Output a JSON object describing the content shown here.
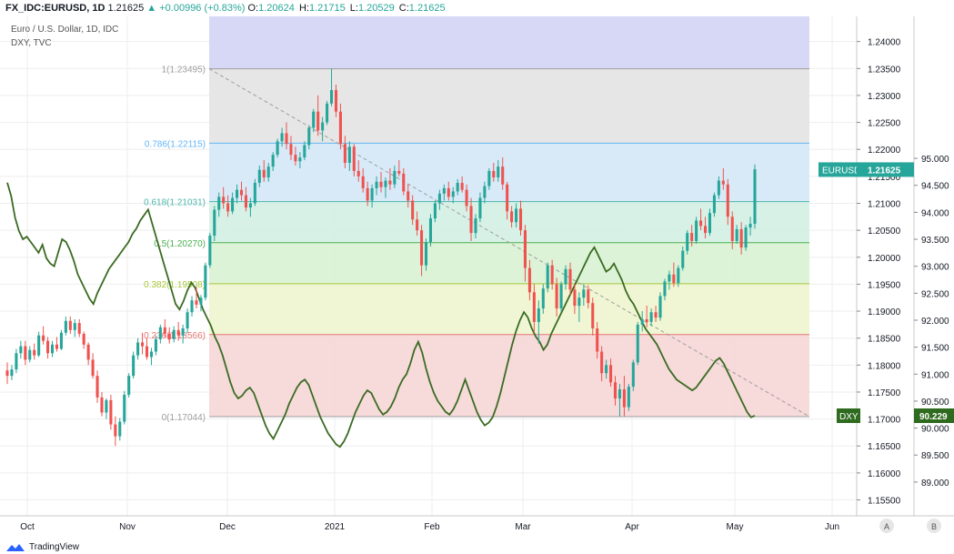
{
  "header": {
    "symbol": "FX_IDC:EURUSD, 1D",
    "last": "1.21625",
    "change": "▲ +0.00996 (+0.83%)",
    "o_label": "O:",
    "o": "1.20624",
    "h_label": "H:",
    "h": "1.21715",
    "l_label": "L:",
    "l": "1.20529",
    "c_label": "C:",
    "c": "1.21625"
  },
  "legend": {
    "main": "Euro / U.S. Dollar, 1D, IDC",
    "overlay": "DXY, TVC"
  },
  "footer": {
    "brand": "TradingView"
  },
  "chart_data": {
    "type": "candlestick",
    "x_ticks": [
      "Oct",
      "Nov",
      "Dec",
      "2021",
      "Feb",
      "Mar",
      "Apr",
      "May",
      "Jun"
    ],
    "left_axis_ticks": [
      1.155,
      1.16,
      1.165,
      1.17,
      1.175,
      1.18,
      1.185,
      1.19,
      1.195,
      1.2,
      1.205,
      1.21,
      1.215,
      1.22,
      1.225,
      1.23,
      1.235,
      1.24
    ],
    "left_axis_labels": [
      "1.15500",
      "1.16000",
      "1.16500",
      "1.17000",
      "1.17500",
      "1.18000",
      "1.18500",
      "1.19000",
      "1.19500",
      "1.20000",
      "1.20500",
      "1.21000",
      "1.21500",
      "1.22000",
      "1.22500",
      "1.23000",
      "1.23500",
      "1.24000"
    ],
    "right_axis_ticks": [
      89.0,
      89.5,
      90.0,
      90.5,
      91.0,
      91.5,
      92.0,
      92.5,
      93.0,
      93.5,
      94.0,
      94.5,
      95.0
    ],
    "right_axis_labels": [
      "89.000",
      "89.500",
      "90.000",
      "90.500",
      "91.000",
      "91.500",
      "92.000",
      "92.500",
      "93.000",
      "93.500",
      "94.000",
      "94.500",
      "95.000"
    ],
    "axis_scale_buttons": [
      "A",
      "B"
    ],
    "fib_levels": [
      {
        "ratio": 1,
        "label": "1(1.23495)",
        "price": 1.23495,
        "fill": "#e3e3e3",
        "line": "#9e9e9e"
      },
      {
        "ratio": 0.786,
        "label": "0.786(1.22115)",
        "price": 1.22115,
        "fill": "#d4e8f6",
        "line": "#64b5f6"
      },
      {
        "ratio": 0.618,
        "label": "0.618(1.21031)",
        "price": 1.21031,
        "fill": "#d3f0e4",
        "line": "#4db6ac"
      },
      {
        "ratio": 0.5,
        "label": "0.5(1.20270)",
        "price": 1.2027,
        "fill": "#d8f2d3",
        "line": "#4caf50"
      },
      {
        "ratio": 0.382,
        "label": "0.382(1.19508)",
        "price": 1.19508,
        "fill": "#eef5cf",
        "line": "#a6c63a"
      },
      {
        "ratio": 0.236,
        "label": "0.236(1.18566)",
        "price": 1.18566,
        "fill": "#f6d6d6",
        "line": "#e57373"
      },
      {
        "ratio": 0,
        "label": "0(1.17044)",
        "price": 1.17044,
        "fill": "",
        "line": "#9e9e9e"
      }
    ],
    "fib_extension_fill": "#d1d4f5",
    "candles": [
      [
        1.179,
        1.1805,
        1.1765,
        1.178
      ],
      [
        1.178,
        1.18,
        1.1772,
        1.1792
      ],
      [
        1.1792,
        1.183,
        1.1785,
        1.1822
      ],
      [
        1.1822,
        1.1845,
        1.1812,
        1.1835
      ],
      [
        1.1835,
        1.1845,
        1.18,
        1.181
      ],
      [
        1.181,
        1.1835,
        1.1805,
        1.1828
      ],
      [
        1.1828,
        1.184,
        1.181,
        1.1818
      ],
      [
        1.1818,
        1.1862,
        1.1815,
        1.1855
      ],
      [
        1.1855,
        1.1872,
        1.1838,
        1.1845
      ],
      [
        1.1845,
        1.1852,
        1.1812,
        1.1822
      ],
      [
        1.1822,
        1.1845,
        1.1815,
        1.1838
      ],
      [
        1.1838,
        1.1852,
        1.1825,
        1.183
      ],
      [
        1.183,
        1.1865,
        1.1828,
        1.186
      ],
      [
        1.186,
        1.189,
        1.1855,
        1.1882
      ],
      [
        1.1882,
        1.189,
        1.1858,
        1.1865
      ],
      [
        1.1865,
        1.1885,
        1.1852,
        1.1878
      ],
      [
        1.1878,
        1.1885,
        1.1852,
        1.1858
      ],
      [
        1.1858,
        1.1862,
        1.183,
        1.1838
      ],
      [
        1.1838,
        1.1842,
        1.18,
        1.181
      ],
      [
        1.181,
        1.1822,
        1.1775,
        1.178
      ],
      [
        1.178,
        1.179,
        1.173,
        1.174
      ],
      [
        1.174,
        1.175,
        1.1705,
        1.1712
      ],
      [
        1.1712,
        1.1738,
        1.17,
        1.1735
      ],
      [
        1.1735,
        1.1745,
        1.168,
        1.169
      ],
      [
        1.169,
        1.1705,
        1.165,
        1.1668
      ],
      [
        1.1668,
        1.1702,
        1.166,
        1.1695
      ],
      [
        1.1695,
        1.1752,
        1.169,
        1.1745
      ],
      [
        1.1745,
        1.1785,
        1.174,
        1.178
      ],
      [
        1.178,
        1.1825,
        1.1775,
        1.1818
      ],
      [
        1.1818,
        1.185,
        1.181,
        1.1842
      ],
      [
        1.1842,
        1.186,
        1.182,
        1.1835
      ],
      [
        1.1835,
        1.185,
        1.181,
        1.1815
      ],
      [
        1.1815,
        1.1832,
        1.18,
        1.1825
      ],
      [
        1.1825,
        1.1855,
        1.1818,
        1.1848
      ],
      [
        1.1848,
        1.1875,
        1.184,
        1.187
      ],
      [
        1.187,
        1.1885,
        1.1852,
        1.1858
      ],
      [
        1.1858,
        1.187,
        1.184,
        1.1848
      ],
      [
        1.1848,
        1.1872,
        1.1842,
        1.1865
      ],
      [
        1.1865,
        1.188,
        1.1845,
        1.1855
      ],
      [
        1.1855,
        1.1875,
        1.184,
        1.1868
      ],
      [
        1.1868,
        1.1905,
        1.186,
        1.1898
      ],
      [
        1.1898,
        1.1928,
        1.189,
        1.192
      ],
      [
        1.192,
        1.1945,
        1.1905,
        1.1912
      ],
      [
        1.1912,
        1.193,
        1.19,
        1.1925
      ],
      [
        1.1925,
        1.199,
        1.192,
        1.1985
      ],
      [
        1.1985,
        1.2045,
        1.198,
        1.204
      ],
      [
        1.204,
        1.2095,
        1.203,
        1.2088
      ],
      [
        1.2088,
        1.212,
        1.2075,
        1.2112
      ],
      [
        1.2112,
        1.213,
        1.209,
        1.21
      ],
      [
        1.21,
        1.2115,
        1.2075,
        1.2085
      ],
      [
        1.2085,
        1.212,
        1.208,
        1.211
      ],
      [
        1.211,
        1.2135,
        1.21,
        1.2125
      ],
      [
        1.2125,
        1.214,
        1.2105,
        1.2115
      ],
      [
        1.2115,
        1.213,
        1.2085,
        1.2092
      ],
      [
        1.2092,
        1.211,
        1.2075,
        1.21
      ],
      [
        1.21,
        1.2145,
        1.2095,
        1.2138
      ],
      [
        1.2138,
        1.217,
        1.213,
        1.2162
      ],
      [
        1.2162,
        1.218,
        1.214,
        1.2148
      ],
      [
        1.2148,
        1.2175,
        1.214,
        1.2168
      ],
      [
        1.2168,
        1.2195,
        1.216,
        1.219
      ],
      [
        1.219,
        1.222,
        1.2185,
        1.2215
      ],
      [
        1.2215,
        1.224,
        1.2205,
        1.223
      ],
      [
        1.223,
        1.225,
        1.22,
        1.221
      ],
      [
        1.221,
        1.2225,
        1.218,
        1.219
      ],
      [
        1.219,
        1.2205,
        1.217,
        1.2178
      ],
      [
        1.2178,
        1.2195,
        1.2165,
        1.2185
      ],
      [
        1.2185,
        1.2215,
        1.218,
        1.2208
      ],
      [
        1.2208,
        1.2245,
        1.22,
        1.224
      ],
      [
        1.224,
        1.2275,
        1.2232,
        1.227
      ],
      [
        1.227,
        1.23,
        1.2225,
        1.2235
      ],
      [
        1.2235,
        1.226,
        1.2215,
        1.225
      ],
      [
        1.225,
        1.229,
        1.2245,
        1.2285
      ],
      [
        1.2285,
        1.235,
        1.228,
        1.231
      ],
      [
        1.231,
        1.232,
        1.226,
        1.227
      ],
      [
        1.227,
        1.2285,
        1.22,
        1.221
      ],
      [
        1.221,
        1.2225,
        1.2165,
        1.2175
      ],
      [
        1.2175,
        1.2215,
        1.216,
        1.2205
      ],
      [
        1.2205,
        1.221,
        1.215,
        1.216
      ],
      [
        1.216,
        1.218,
        1.214,
        1.215
      ],
      [
        1.215,
        1.2165,
        1.212,
        1.2128
      ],
      [
        1.2128,
        1.214,
        1.2095,
        1.2105
      ],
      [
        1.2105,
        1.2135,
        1.2092,
        1.2128
      ],
      [
        1.2128,
        1.215,
        1.2115,
        1.214
      ],
      [
        1.214,
        1.2158,
        1.212,
        1.213
      ],
      [
        1.213,
        1.2148,
        1.211,
        1.2142
      ],
      [
        1.2142,
        1.2165,
        1.2125,
        1.2135
      ],
      [
        1.2135,
        1.217,
        1.2128,
        1.216
      ],
      [
        1.216,
        1.218,
        1.215,
        1.2155
      ],
      [
        1.2155,
        1.2165,
        1.2115,
        1.2122
      ],
      [
        1.2122,
        1.2135,
        1.2092,
        1.2105
      ],
      [
        1.2105,
        1.2115,
        1.206,
        1.207
      ],
      [
        1.207,
        1.2085,
        1.204,
        1.205
      ],
      [
        1.205,
        1.206,
        1.1965,
        1.1985
      ],
      [
        1.1985,
        1.2035,
        1.1975,
        1.2028
      ],
      [
        1.2028,
        1.208,
        1.202,
        1.2072
      ],
      [
        1.2072,
        1.2105,
        1.2065,
        1.21
      ],
      [
        1.21,
        1.2125,
        1.2088,
        1.2118
      ],
      [
        1.2118,
        1.2135,
        1.2105,
        1.2128
      ],
      [
        1.2128,
        1.214,
        1.2105,
        1.2112
      ],
      [
        1.2112,
        1.213,
        1.21,
        1.2122
      ],
      [
        1.2122,
        1.2145,
        1.2115,
        1.2138
      ],
      [
        1.2138,
        1.215,
        1.212,
        1.2125
      ],
      [
        1.2125,
        1.2135,
        1.2085,
        1.2095
      ],
      [
        1.2095,
        1.211,
        1.203,
        1.2045
      ],
      [
        1.2045,
        1.208,
        1.2035,
        1.2072
      ],
      [
        1.2072,
        1.212,
        1.2065,
        1.211
      ],
      [
        1.211,
        1.214,
        1.21,
        1.2132
      ],
      [
        1.2132,
        1.2165,
        1.2125,
        1.216
      ],
      [
        1.216,
        1.2175,
        1.214,
        1.2148
      ],
      [
        1.2148,
        1.218,
        1.214,
        1.2168
      ],
      [
        1.2168,
        1.2185,
        1.2125,
        1.2135
      ],
      [
        1.2135,
        1.214,
        1.207,
        1.2085
      ],
      [
        1.2085,
        1.2095,
        1.2055,
        1.2065
      ],
      [
        1.2065,
        1.21,
        1.2055,
        1.209
      ],
      [
        1.209,
        1.2105,
        1.204,
        1.205
      ],
      [
        1.205,
        1.206,
        1.1955,
        1.198
      ],
      [
        1.198,
        1.1995,
        1.192,
        1.1935
      ],
      [
        1.1935,
        1.195,
        1.186,
        1.188
      ],
      [
        1.188,
        1.192,
        1.184,
        1.1905
      ],
      [
        1.1905,
        1.195,
        1.1895,
        1.1942
      ],
      [
        1.1942,
        1.199,
        1.1935,
        1.1985
      ],
      [
        1.1985,
        1.1995,
        1.194,
        1.195
      ],
      [
        1.195,
        1.1962,
        1.189,
        1.1905
      ],
      [
        1.1905,
        1.1955,
        1.1898,
        1.195
      ],
      [
        1.195,
        1.1985,
        1.194,
        1.1978
      ],
      [
        1.1978,
        1.199,
        1.193,
        1.194
      ],
      [
        1.194,
        1.195,
        1.1895,
        1.191
      ],
      [
        1.191,
        1.1935,
        1.188,
        1.1925
      ],
      [
        1.1925,
        1.195,
        1.191,
        1.194
      ],
      [
        1.194,
        1.1948,
        1.1905,
        1.1915
      ],
      [
        1.1915,
        1.1925,
        1.1855,
        1.1868
      ],
      [
        1.1868,
        1.188,
        1.1812,
        1.1825
      ],
      [
        1.1825,
        1.1835,
        1.177,
        1.1785
      ],
      [
        1.1785,
        1.181,
        1.1775,
        1.18
      ],
      [
        1.18,
        1.1812,
        1.176,
        1.1768
      ],
      [
        1.1768,
        1.178,
        1.1725,
        1.1738
      ],
      [
        1.1738,
        1.1765,
        1.1705,
        1.1755
      ],
      [
        1.1755,
        1.178,
        1.1705,
        1.1722
      ],
      [
        1.1722,
        1.1765,
        1.1715,
        1.176
      ],
      [
        1.176,
        1.181,
        1.1752,
        1.1805
      ],
      [
        1.1805,
        1.188,
        1.18,
        1.1875
      ],
      [
        1.1875,
        1.19,
        1.1862,
        1.1885
      ],
      [
        1.1885,
        1.191,
        1.187,
        1.188
      ],
      [
        1.188,
        1.1905,
        1.1872,
        1.1898
      ],
      [
        1.1898,
        1.191,
        1.188,
        1.1888
      ],
      [
        1.1888,
        1.1935,
        1.1882,
        1.1928
      ],
      [
        1.1928,
        1.196,
        1.192,
        1.1955
      ],
      [
        1.1955,
        1.1975,
        1.194,
        1.1968
      ],
      [
        1.1968,
        1.199,
        1.1945,
        1.1952
      ],
      [
        1.1952,
        1.1985,
        1.1945,
        1.198
      ],
      [
        1.198,
        1.202,
        1.1975,
        1.2012
      ],
      [
        1.2012,
        1.205,
        1.2005,
        1.2045
      ],
      [
        1.2045,
        1.206,
        1.202,
        1.203
      ],
      [
        1.203,
        1.2075,
        1.2025,
        1.2068
      ],
      [
        1.2068,
        1.209,
        1.205,
        1.2058
      ],
      [
        1.2058,
        1.2075,
        1.2035,
        1.2045
      ],
      [
        1.2045,
        1.209,
        1.204,
        1.2082
      ],
      [
        1.2082,
        1.212,
        1.2075,
        1.2115
      ],
      [
        1.2115,
        1.215,
        1.2108,
        1.2142
      ],
      [
        1.2142,
        1.2165,
        1.2125,
        1.2135
      ],
      [
        1.2135,
        1.2145,
        1.206,
        1.2075
      ],
      [
        1.2075,
        1.2085,
        1.2015,
        1.203
      ],
      [
        1.203,
        1.206,
        1.2025,
        1.2052
      ],
      [
        1.2052,
        1.2065,
        1.2005,
        1.2018
      ],
      [
        1.2018,
        1.206,
        1.2012,
        1.2055
      ],
      [
        1.2055,
        1.2075,
        1.204,
        1.2062
      ],
      [
        1.2062,
        1.2172,
        1.2053,
        1.2163
      ]
    ],
    "dxy_line": [
      94.55,
      94.3,
      93.9,
      93.65,
      93.5,
      93.55,
      93.45,
      93.35,
      93.25,
      93.4,
      93.15,
      93.05,
      93.0,
      93.25,
      93.5,
      93.45,
      93.3,
      93.1,
      92.85,
      92.7,
      92.55,
      92.4,
      92.3,
      92.5,
      92.65,
      92.8,
      92.95,
      93.05,
      93.15,
      93.25,
      93.35,
      93.45,
      93.6,
      93.7,
      93.85,
      93.95,
      94.05,
      93.8,
      93.55,
      93.3,
      93.05,
      92.8,
      92.55,
      92.3,
      92.2,
      92.35,
      92.55,
      92.7,
      92.6,
      92.4,
      92.2,
      92.05,
      91.9,
      91.7,
      91.55,
      91.35,
      91.1,
      90.85,
      90.65,
      90.55,
      90.6,
      90.7,
      90.75,
      90.65,
      90.45,
      90.25,
      90.05,
      89.9,
      89.8,
      89.95,
      90.1,
      90.25,
      90.45,
      90.6,
      90.75,
      90.85,
      90.9,
      90.8,
      90.6,
      90.4,
      90.2,
      90.05,
      89.9,
      89.8,
      89.7,
      89.65,
      89.75,
      89.9,
      90.1,
      90.3,
      90.45,
      90.6,
      90.7,
      90.65,
      90.5,
      90.35,
      90.25,
      90.3,
      90.4,
      90.55,
      90.75,
      90.9,
      91.0,
      91.2,
      91.45,
      91.6,
      91.4,
      91.1,
      90.85,
      90.65,
      90.5,
      90.4,
      90.3,
      90.25,
      90.35,
      90.5,
      90.7,
      90.9,
      90.7,
      90.5,
      90.3,
      90.15,
      90.05,
      90.1,
      90.2,
      90.4,
      90.65,
      90.95,
      91.25,
      91.55,
      91.8,
      92.0,
      92.15,
      92.05,
      91.85,
      91.7,
      91.6,
      91.45,
      91.55,
      91.75,
      91.9,
      92.05,
      92.2,
      92.35,
      92.5,
      92.65,
      92.8,
      92.95,
      93.1,
      93.25,
      93.35,
      93.2,
      93.05,
      92.9,
      92.95,
      93.05,
      92.9,
      92.75,
      92.55,
      92.4,
      92.3,
      92.15,
      92.0,
      91.85,
      91.75,
      91.65,
      91.55,
      91.4,
      91.25,
      91.1,
      91.0,
      90.9,
      90.85,
      90.8,
      90.75,
      90.7,
      90.75,
      90.85,
      90.95,
      91.05,
      91.15,
      91.25,
      91.3,
      91.2,
      91.05,
      90.9,
      90.75,
      90.6,
      90.45,
      90.3,
      90.2,
      90.229
    ],
    "price_label": {
      "name": "EURUSD",
      "value": "1.21625",
      "price": 1.21625,
      "color": "#26a69a"
    },
    "dxy_label": {
      "name": "DXY",
      "value": "90.229",
      "price": 90.229,
      "color": "#2e6b1f"
    },
    "colors": {
      "up": "#26a69a",
      "down": "#ef5350",
      "dxy": "#3a6b22",
      "grid": "#eeeeee"
    }
  }
}
